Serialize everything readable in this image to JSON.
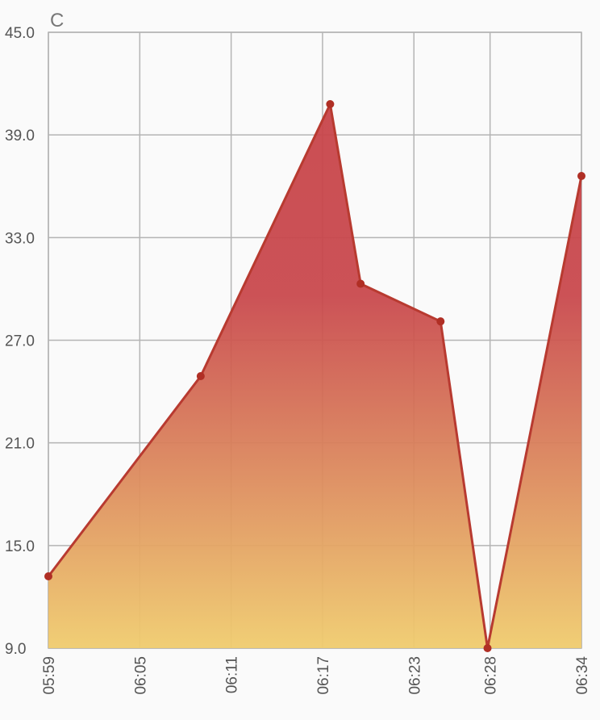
{
  "chart_data": {
    "type": "area",
    "unit_label": "C",
    "ylim": [
      9.0,
      45.0
    ],
    "y_ticks": [
      "9.0",
      "15.0",
      "21.0",
      "27.0",
      "33.0",
      "39.0",
      "45.0"
    ],
    "x_tick_labels": [
      "05:59",
      "06:05",
      "06:11",
      "06:17",
      "06:23",
      "06:28",
      "06:34"
    ],
    "x_range": [
      "05:59",
      "06:34"
    ],
    "series": [
      {
        "points": [
          {
            "x": "05:59",
            "y": 13.2
          },
          {
            "x": "06:09",
            "y": 24.9
          },
          {
            "x": "06:17:30",
            "y": 40.8
          },
          {
            "x": "06:19:30",
            "y": 30.3
          },
          {
            "x": "06:24:45",
            "y": 28.1
          },
          {
            "x": "06:27:50",
            "y": 9.0
          },
          {
            "x": "06:34",
            "y": 36.6
          }
        ]
      }
    ],
    "grid": true,
    "colors": {
      "line": "#b83a30",
      "marker": "#b02f25",
      "fill_top": "#c8454a",
      "fill_bottom": "#f0cc6e",
      "grid": "#b4b4b4",
      "axis_text": "#555555"
    }
  }
}
